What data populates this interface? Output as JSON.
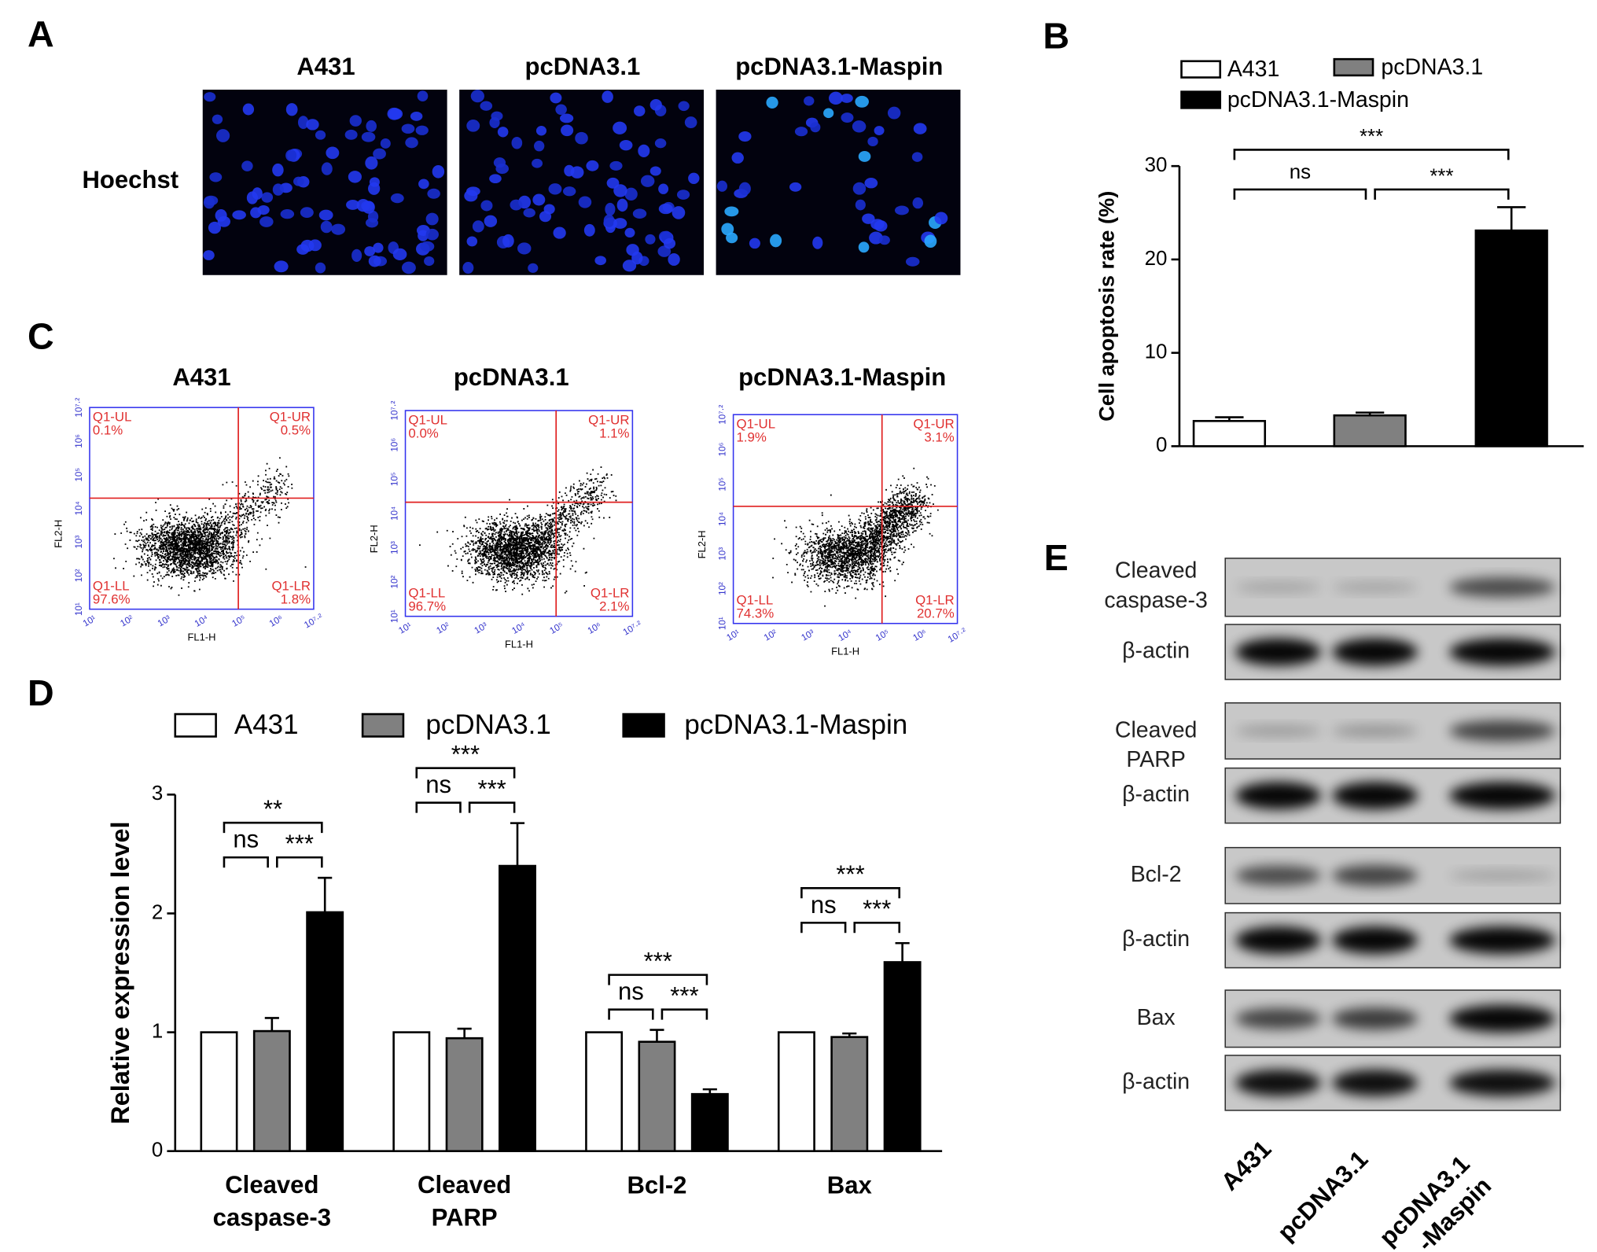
{
  "chart_data": [
    {
      "type": "bar",
      "panel": "B",
      "ylabel": "Cell apoptosis rate (%)",
      "ylim": [
        0,
        30
      ],
      "yticks": [
        0,
        10,
        20,
        30
      ],
      "series": [
        {
          "name": "A431",
          "color": "#ffffff",
          "values": [
            2.7
          ],
          "errors": [
            0.4
          ]
        },
        {
          "name": "pcDNA3.1",
          "color": "#808080",
          "values": [
            3.3
          ],
          "errors": [
            0.3
          ]
        },
        {
          "name": "pcDNA3.1-Maspin",
          "color": "#000000",
          "values": [
            23.1
          ],
          "errors": [
            2.5
          ]
        }
      ],
      "significance": [
        {
          "left": "ns",
          "right": "***",
          "top": "***"
        }
      ]
    },
    {
      "type": "bar",
      "panel": "D",
      "ylabel": "Relative expression level",
      "categories": [
        "Cleaved\ncaspase-3",
        "Cleaved\nPARP",
        "Bcl-2",
        "Bax"
      ],
      "ylim": [
        0,
        3
      ],
      "yticks": [
        0,
        1,
        2,
        3
      ],
      "series": [
        {
          "name": "A431",
          "color": "#ffffff",
          "values": [
            1,
            1,
            1,
            1
          ],
          "errors": [
            0,
            0,
            0,
            0
          ]
        },
        {
          "name": "pcDNA3.1",
          "color": "#808080",
          "values": [
            1.01,
            0.95,
            0.92,
            0.96
          ],
          "errors": [
            0.11,
            0.08,
            0.1,
            0.03
          ]
        },
        {
          "name": "pcDNA3.1-Maspin",
          "color": "#000000",
          "values": [
            2.01,
            2.4,
            0.48,
            1.59
          ],
          "errors": [
            0.29,
            0.36,
            0.04,
            0.16
          ]
        }
      ],
      "significance": [
        {
          "left": "ns",
          "right": "***",
          "top": "**"
        },
        {
          "left": "ns",
          "right": "***",
          "top": "***"
        },
        {
          "left": "ns",
          "right": "***",
          "top": "***"
        },
        {
          "left": "ns",
          "right": "***",
          "top": "***"
        }
      ]
    }
  ],
  "panel_a": {
    "label": "A",
    "columns": [
      "A431",
      "pcDNA3.1",
      "pcDNA3.1-Maspin"
    ],
    "row": "Hoechst"
  },
  "panel_c": {
    "label": "C",
    "axis_ticks": [
      "10¹",
      "10²",
      "10³",
      "10⁴",
      "10⁵",
      "10⁶",
      "10⁷·²"
    ],
    "x_label": "FL1-H",
    "y_label": "FL2-H",
    "plots": [
      {
        "title": "A431",
        "quadrants": [
          [
            "Q1-UL",
            "0.1%"
          ],
          [
            "Q1-UR",
            "0.5%"
          ],
          [
            "Q1-LL",
            "97.6%"
          ],
          [
            "Q1-LR",
            "1.8%"
          ]
        ]
      },
      {
        "title": "pcDNA3.1",
        "quadrants": [
          [
            "Q1-UL",
            "0.0%"
          ],
          [
            "Q1-UR",
            "1.1%"
          ],
          [
            "Q1-LL",
            "96.7%"
          ],
          [
            "Q1-LR",
            "2.1%"
          ]
        ]
      },
      {
        "title": "pcDNA3.1-Maspin",
        "quadrants": [
          [
            "Q1-UL",
            "1.9%"
          ],
          [
            "Q1-UR",
            "3.1%"
          ],
          [
            "Q1-LL",
            "74.3%"
          ],
          [
            "Q1-LR",
            "20.7%"
          ]
        ]
      }
    ]
  },
  "panel_e": {
    "label": "E",
    "rows": [
      "Cleaved\ncaspase-3",
      "β-actin",
      "Cleaved\nPARP",
      "β-actin",
      "Bcl-2",
      "β-actin",
      "Bax",
      "β-actin"
    ],
    "columns": [
      "A431",
      "pcDNA3.1",
      "pcDNA3.1\n-Maspin"
    ]
  }
}
